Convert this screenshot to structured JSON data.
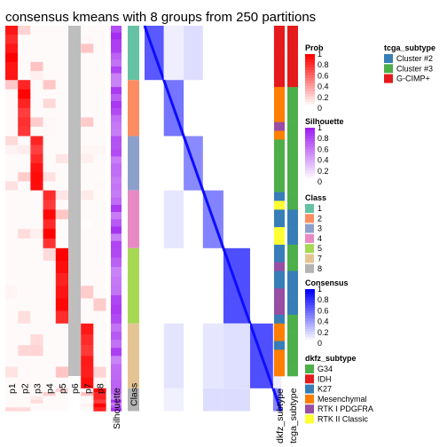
{
  "chart_data": {
    "type": "heatmap",
    "title": "consensus kmeans with 8 groups from 250 partitions",
    "prob_columns": [
      "p1",
      "p2",
      "p3",
      "p4",
      "p5",
      "p6",
      "p7",
      "p8"
    ],
    "annotation_columns": [
      "Silhouette",
      "Class"
    ],
    "side_annotation_columns": [
      "dkfz_subtype",
      "tcga_subtype"
    ],
    "class_order": [
      1,
      2,
      3,
      4,
      5,
      7,
      8
    ],
    "class_row_fractions": [
      0.155,
      0.16,
      0.155,
      0.165,
      0.215,
      0.185,
      0.065
    ],
    "prob_active_column_by_class": [
      1,
      2,
      3,
      4,
      5,
      7,
      8
    ],
    "legends": {
      "prob": {
        "title": "Prob",
        "ticks": [
          "1",
          "0.8",
          "0.6",
          "0.4",
          "0.2",
          "0"
        ]
      },
      "silhouette": {
        "title": "Silhouette",
        "ticks": [
          "1",
          "0.8",
          "0.6",
          "0.4",
          "0.2",
          "0"
        ]
      },
      "class": {
        "title": "Class",
        "items": [
          {
            "label": "1",
            "color": "#66C2A5"
          },
          {
            "label": "2",
            "color": "#FC8D62"
          },
          {
            "label": "3",
            "color": "#8DA0CB"
          },
          {
            "label": "4",
            "color": "#E78AC3"
          },
          {
            "label": "5",
            "color": "#A6D854"
          },
          {
            "label": "7",
            "color": "#E5C494"
          },
          {
            "label": "8",
            "color": "#B3B3B3"
          }
        ]
      },
      "consensus": {
        "title": "Consensus",
        "ticks": [
          "1",
          "0.8",
          "0.6",
          "0.4",
          "0.2",
          "0"
        ]
      },
      "tcga_subtype": {
        "title": "tcga_subtype",
        "items": [
          {
            "label": "Cluster #2",
            "color": "#377EB8"
          },
          {
            "label": "Cluster #3",
            "color": "#4DAF4A"
          },
          {
            "label": "G-CIMP+",
            "color": "#E41A1C"
          }
        ]
      },
      "dkfz_subtype": {
        "title": "dkfz_subtype",
        "items": [
          {
            "label": "G34",
            "color": "#4DAF4A"
          },
          {
            "label": "IDH",
            "color": "#E41A1C"
          },
          {
            "label": "K27",
            "color": "#377EB8"
          },
          {
            "label": "Mesenchymal",
            "color": "#FF7F00"
          },
          {
            "label": "RTK I PDGFRA",
            "color": "#984EA3"
          },
          {
            "label": "RTK II Classic",
            "color": "#FFFF33"
          }
        ]
      }
    },
    "colors": {
      "prob_high": "#FF0000",
      "prob_low": "#FFFFFF",
      "silhouette_high": "#A020F0",
      "consensus_high": "#0000FF",
      "p6_constant": "#BEBEBE"
    }
  }
}
